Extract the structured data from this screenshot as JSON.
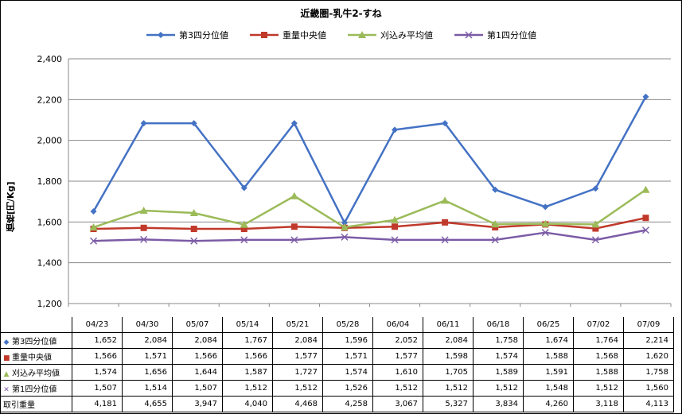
{
  "chart_data": {
    "type": "line",
    "title": "近畿圏-乳牛2-すね",
    "ylabel": "価格[円/Kg]",
    "xlabel": "",
    "categories": [
      "04/23",
      "04/30",
      "05/07",
      "05/14",
      "05/21",
      "05/28",
      "06/04",
      "06/11",
      "06/18",
      "06/25",
      "07/02",
      "07/09"
    ],
    "ylim": [
      1200,
      2400
    ],
    "yticks": [
      1200,
      1400,
      1600,
      1800,
      2000,
      2200,
      2400
    ],
    "ytick_labels": [
      "1,200",
      "1,400",
      "1,600",
      "1,800",
      "2,000",
      "2,200",
      "2,400"
    ],
    "grid": true,
    "legend": "top",
    "series": [
      {
        "name": "第3四分位値",
        "color": "#4472C4",
        "marker": "diamond",
        "values": [
          1652,
          2084,
          2084,
          1767,
          2084,
          1596,
          2052,
          2084,
          1758,
          1674,
          1764,
          2214
        ],
        "labels": [
          "1,652",
          "2,084",
          "2,084",
          "1,767",
          "2,084",
          "1,596",
          "2,052",
          "2,084",
          "1,758",
          "1,674",
          "1,764",
          "2,214"
        ]
      },
      {
        "name": "重量中央値",
        "color": "#C0392B",
        "marker": "square",
        "values": [
          1566,
          1571,
          1566,
          1566,
          1577,
          1571,
          1577,
          1598,
          1574,
          1588,
          1568,
          1620
        ],
        "labels": [
          "1,566",
          "1,571",
          "1,566",
          "1,566",
          "1,577",
          "1,571",
          "1,577",
          "1,598",
          "1,574",
          "1,588",
          "1,568",
          "1,620"
        ]
      },
      {
        "name": "刈込み平均値",
        "color": "#9BBB59",
        "marker": "triangle",
        "values": [
          1574,
          1656,
          1644,
          1587,
          1727,
          1574,
          1610,
          1705,
          1589,
          1591,
          1588,
          1758
        ],
        "labels": [
          "1,574",
          "1,656",
          "1,644",
          "1,587",
          "1,727",
          "1,574",
          "1,610",
          "1,705",
          "1,589",
          "1,591",
          "1,588",
          "1,758"
        ]
      },
      {
        "name": "第1四分位値",
        "color": "#7B5BA6",
        "marker": "x",
        "values": [
          1507,
          1514,
          1507,
          1512,
          1512,
          1526,
          1512,
          1512,
          1512,
          1548,
          1512,
          1560
        ],
        "labels": [
          "1,507",
          "1,514",
          "1,507",
          "1,512",
          "1,512",
          "1,526",
          "1,512",
          "1,512",
          "1,512",
          "1,548",
          "1,512",
          "1,560"
        ]
      }
    ],
    "table_extra_row": {
      "name": "取引重量",
      "labels": [
        "4,181",
        "4,655",
        "3,947",
        "4,040",
        "4,468",
        "4,258",
        "3,067",
        "5,327",
        "3,834",
        "4,260",
        "3,118",
        "4,113"
      ]
    }
  }
}
